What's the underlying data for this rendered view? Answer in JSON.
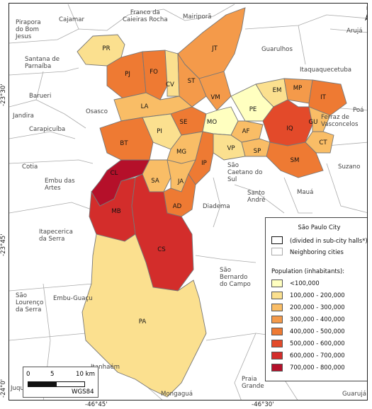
{
  "map": {
    "legend": {
      "title": "São Paulo City",
      "city_label": "(divided in sub-city halls*)",
      "neighbor_label": "Neighboring cities",
      "pop_title": "Population (inhabitants):",
      "classes": [
        {
          "label": "<100,000",
          "color": "#ffffc0"
        },
        {
          "label": "100,000 - 200,000",
          "color": "#fbe08f"
        },
        {
          "label": "200,000 - 300,000",
          "color": "#f9bd66"
        },
        {
          "label": "300,000 - 400,000",
          "color": "#f49a4a"
        },
        {
          "label": "400,000 - 500,000",
          "color": "#ee7a33"
        },
        {
          "label": "500,000 - 600,000",
          "color": "#e34a2a"
        },
        {
          "label": "600,000 - 700,000",
          "color": "#d32d2b"
        },
        {
          "label": "700,000 - 800,000",
          "color": "#b5102a"
        }
      ]
    },
    "scale": {
      "zero": "0",
      "five": "5",
      "ten": "10 km",
      "crs": "WGS84"
    },
    "north": "N",
    "ticks": {
      "lon": [
        "-46°45'",
        "-46°30'"
      ],
      "lat": [
        "-23°30'",
        "-23°45'",
        "-24°0'"
      ]
    },
    "districts": [
      "PR",
      "PJ",
      "FO",
      "JT",
      "CV",
      "ST",
      "VM",
      "EM",
      "MP",
      "IT",
      "PE",
      "LA",
      "SE",
      "MO",
      "AF",
      "IQ",
      "GU",
      "CT",
      "PI",
      "BT",
      "MG",
      "VP",
      "SP",
      "SM",
      "CL",
      "SA",
      "JA",
      "IP",
      "AD",
      "MB",
      "CS",
      "PA"
    ],
    "cities": {
      "pirapora": "Pirapora\ndo Bom\nJesus",
      "cajamar": "Cajamar",
      "franco": "Franco da\nCaieiras Rocha",
      "mairipora": "Mairiporã",
      "aruja": "Arujá",
      "guarulhos": "Guarulhos",
      "santana": "Santana de\nParnaíba",
      "itaquaquecetuba": "Itaquaquecetuba",
      "barueri": "Barueri",
      "jandira": "Jandira",
      "osasco": "Osasco",
      "poa": "Poá",
      "carapicuiba": "Carapicuíba",
      "ferraz": "Ferraz de\nVasconcelos",
      "cotia": "Cotia",
      "suzano": "Suzano",
      "sao_caetano": "São\nCaetano do\nSul",
      "embu_artes": "Embu das\nArtes",
      "santo_andre": "Santo\nAndré",
      "maua": "Mauá",
      "diadema": "Diadema",
      "itapecerica": "Itapecerica\nda Serra",
      "sao_bernardo": "São\nBernardo\ndo Campo",
      "sao_lourenco": "São\nLourenço\nda Serra",
      "embu_guacu": "Embu-Guaçu",
      "itanhaem": "Itanhaém",
      "juquitiba": "Juquitiba",
      "mongagua": "Mongaguá",
      "praia_grande": "Praia\nGrande",
      "guaruja": "Guarujá"
    }
  }
}
